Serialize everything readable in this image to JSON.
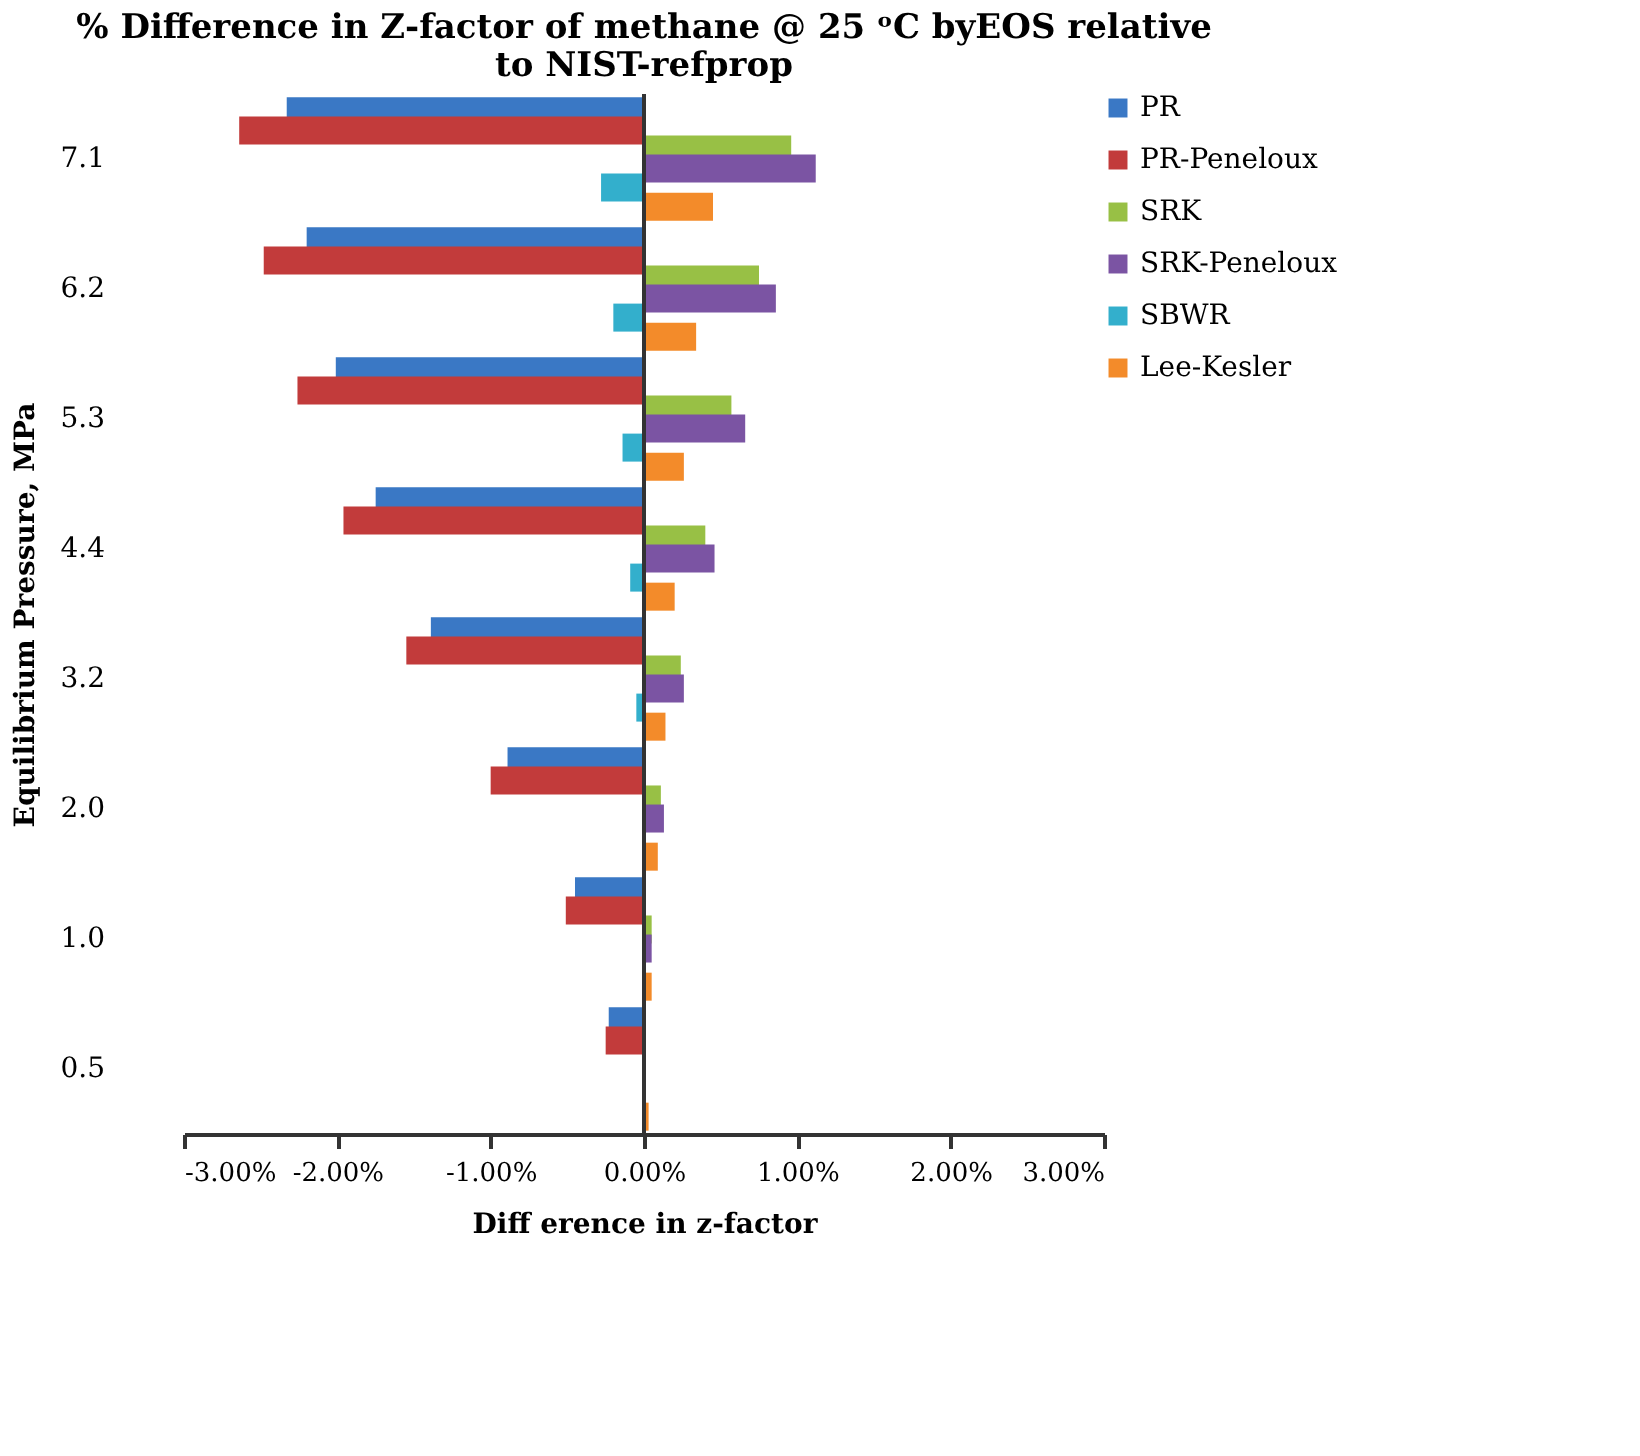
{
  "chart_data": {
    "type": "bar",
    "orientation": "horizontal",
    "title": "% Difference in Z-factor of methane @ 25 ᵒC byEOS relative to NIST-refprop",
    "xlabel": "Diff erence in z-factor",
    "ylabel": "Equilibrium Pressure,  MPa",
    "categories": [
      "7.1",
      "6.2",
      "5.3",
      "4.4",
      "3.2",
      "2.0",
      "1.0",
      "0.5"
    ],
    "series": [
      {
        "name": "PR",
        "color": "#3a78c5",
        "values": [
          -2.33,
          -2.2,
          -2.01,
          -1.75,
          -1.39,
          -0.89,
          -0.45,
          -0.23
        ]
      },
      {
        "name": "PR-Peneloux",
        "color": "#c23b3b",
        "values": [
          -2.64,
          -2.48,
          -2.26,
          -1.96,
          -1.55,
          -1.0,
          -0.51,
          -0.25
        ]
      },
      {
        "name": "SRK",
        "color": "#98c045",
        "values": [
          0.96,
          0.75,
          0.57,
          0.4,
          0.24,
          0.11,
          0.05,
          0.01
        ]
      },
      {
        "name": "SRK-Peneloux",
        "color": "#7b54a3",
        "values": [
          1.12,
          0.86,
          0.66,
          0.46,
          0.26,
          0.13,
          0.05,
          null
        ]
      },
      {
        "name": "SBWR",
        "color": "#33afcc",
        "values": [
          -0.28,
          -0.2,
          -0.14,
          -0.09,
          -0.05,
          -0.01,
          0.0,
          0.0
        ]
      },
      {
        "name": "Lee-Kesler",
        "color": "#f38b2a",
        "values": [
          0.45,
          0.34,
          0.26,
          0.2,
          0.14,
          0.09,
          0.05,
          0.03
        ]
      }
    ],
    "xlim": [
      -3,
      3
    ],
    "xticks": [
      {
        "value": -3,
        "label": "-3.00%"
      },
      {
        "value": -2,
        "label": "-2.00%"
      },
      {
        "value": -1,
        "label": "-1.00%"
      },
      {
        "value": 0,
        "label": "0.00%"
      },
      {
        "value": 1,
        "label": "1.00%"
      },
      {
        "value": 2,
        "label": "2.00%"
      },
      {
        "value": 3,
        "label": "3.00%"
      }
    ],
    "ref_lines": [
      {
        "axis": "x",
        "value": 0,
        "color": "#333333"
      }
    ],
    "grid": false,
    "legend": "right"
  }
}
